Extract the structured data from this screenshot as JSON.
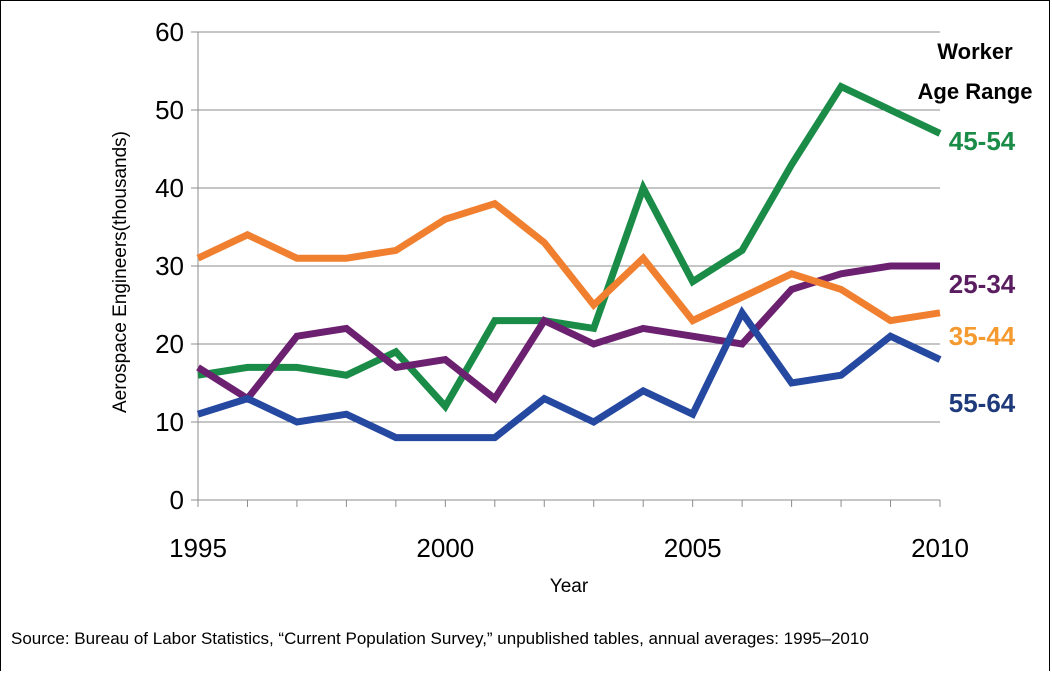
{
  "chart_data": {
    "type": "line",
    "title": "",
    "xlabel": "Year",
    "ylabel": "Aerospace Engineers(thousands)",
    "x": [
      1995,
      1996,
      1997,
      1998,
      1999,
      2000,
      2001,
      2002,
      2003,
      2004,
      2005,
      2006,
      2007,
      2008,
      2009,
      2010
    ],
    "xlim": [
      1995,
      2010
    ],
    "ylim": [
      0,
      60
    ],
    "x_ticks": [
      "1995",
      "2000",
      "2005",
      "2010"
    ],
    "y_ticks": [
      "0",
      "10",
      "20",
      "30",
      "40",
      "50",
      "60"
    ],
    "grid": "horizontal",
    "legend_title": [
      "Worker",
      "Age Range"
    ],
    "series": [
      {
        "name": "45-54",
        "color": "#1a8c47",
        "values": [
          16,
          17,
          17,
          16,
          19,
          12,
          23,
          23,
          22,
          40,
          28,
          32,
          43,
          53,
          50,
          47
        ]
      },
      {
        "name": "25-34",
        "color": "#6b2070",
        "values": [
          17,
          13,
          21,
          22,
          17,
          18,
          13,
          23,
          20,
          22,
          21,
          20,
          27,
          29,
          30,
          30
        ]
      },
      {
        "name": "35-44",
        "color": "#f08030",
        "values": [
          31,
          34,
          31,
          31,
          32,
          36,
          38,
          33,
          25,
          31,
          23,
          26,
          29,
          27,
          23,
          24
        ]
      },
      {
        "name": "55-64",
        "color": "#2548a0",
        "values": [
          11,
          13,
          10,
          11,
          8,
          8,
          8,
          13,
          10,
          14,
          11,
          24,
          15,
          16,
          21,
          18
        ]
      }
    ],
    "label_colors": {
      "45-54": "#1a8c47",
      "25-34": "#5a1d60",
      "35-44": "#f59a30",
      "55-64": "#1f3a7a"
    }
  },
  "source": "Source: Bureau of Labor Statistics, “Current Population Survey,” unpublished tables, annual averages: 1995–2010"
}
